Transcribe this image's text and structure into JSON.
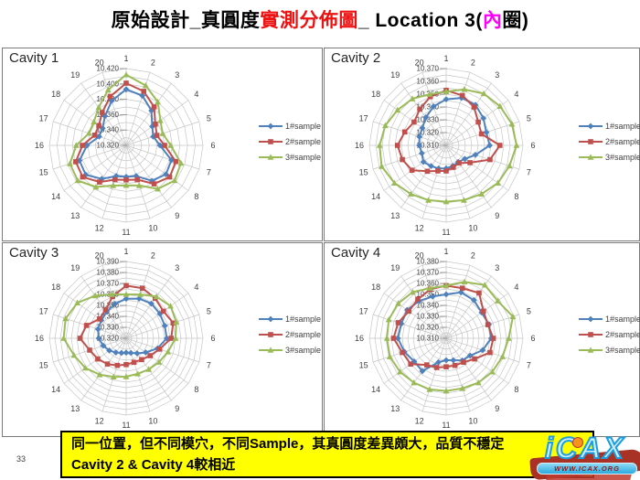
{
  "slide": {
    "title_segments": [
      {
        "text": "原始設計_真圓度",
        "color": "#000000"
      },
      {
        "text": "實測分佈圖",
        "color": "#ee1111"
      },
      {
        "text": "_ Location 3(",
        "color": "#000000"
      },
      {
        "text": "內",
        "color": "#ff00ff"
      },
      {
        "text": "圈)",
        "color": "#000000"
      }
    ],
    "page_number": "33",
    "note": {
      "line1": "同一位置，但不同模穴，不同Sample，其真圓度差異頗大，品質不穩定",
      "line2": "Cavity 2 & Cavity 4較相近"
    },
    "logo": {
      "text": "iCAX",
      "url": "WWW.ICAX.ORG"
    }
  },
  "colors": {
    "series1": "#4F81BD",
    "series2": "#C0504D",
    "series3": "#9BBB59",
    "grid": "#c6c6c6",
    "banner_bg": "#ffff00"
  },
  "chart_data": [
    {
      "type": "radar",
      "title": "Cavity 1",
      "categories": [
        "1",
        "2",
        "3",
        "4",
        "5",
        "6",
        "7",
        "8",
        "9",
        "10",
        "11",
        "12",
        "13",
        "14",
        "15",
        "16",
        "17",
        "18",
        "19",
        "20"
      ],
      "axis": {
        "min": 10.32,
        "max": 10.42,
        "minor_step": 0.01,
        "tick_labels": [
          "10.420",
          "10.400",
          "10.380",
          "10.360",
          "10.340",
          "10.320"
        ]
      },
      "legend_position": "right",
      "series": [
        {
          "name": "1#sample",
          "marker": "diamond",
          "color": "#4F81BD",
          "values": [
            10.393,
            10.388,
            10.376,
            10.362,
            10.357,
            10.364,
            10.382,
            10.384,
            10.377,
            10.362,
            10.361,
            10.362,
            10.374,
            10.385,
            10.384,
            10.371,
            10.357,
            10.358,
            10.367,
            10.381
          ]
        },
        {
          "name": "2#sample",
          "marker": "square",
          "color": "#C0504D",
          "values": [
            10.401,
            10.394,
            10.382,
            10.367,
            10.362,
            10.37,
            10.388,
            10.39,
            10.382,
            10.367,
            10.365,
            10.367,
            10.379,
            10.39,
            10.389,
            10.377,
            10.363,
            10.364,
            10.373,
            10.387
          ]
        },
        {
          "name": "3#sample",
          "marker": "triangle",
          "color": "#9BBB59",
          "values": [
            10.412,
            10.402,
            10.39,
            10.375,
            10.37,
            10.378,
            10.395,
            10.398,
            10.39,
            10.375,
            10.372,
            10.375,
            10.387,
            10.398,
            10.397,
            10.385,
            10.371,
            10.372,
            10.381,
            10.396
          ]
        }
      ]
    },
    {
      "type": "radar",
      "title": "Cavity 2",
      "categories": [
        "1",
        "2",
        "3",
        "4",
        "5",
        "6",
        "7",
        "8",
        "9",
        "10",
        "11",
        "12",
        "13",
        "14",
        "15",
        "16",
        "17",
        "18",
        "19",
        "20"
      ],
      "axis": {
        "min": 10.31,
        "max": 10.37,
        "minor_step": 0.005,
        "tick_labels": [
          "10.370",
          "10.360",
          "10.350",
          "10.340",
          "10.330",
          "10.320",
          "10.310"
        ]
      },
      "legend_position": "right",
      "series": [
        {
          "name": "1#sample",
          "marker": "diamond",
          "color": "#4F81BD",
          "values": [
            10.346,
            10.349,
            10.349,
            10.346,
            10.343,
            10.344,
            10.334,
            10.328,
            10.326,
            10.327,
            10.328,
            10.329,
            10.33,
            10.332,
            10.33,
            10.331,
            10.332,
            10.333,
            10.337,
            10.342
          ]
        },
        {
          "name": "2#sample",
          "marker": "square",
          "color": "#C0504D",
          "values": [
            10.353,
            10.351,
            10.347,
            10.341,
            10.339,
            10.352,
            10.346,
            10.333,
            10.327,
            10.328,
            10.33,
            10.331,
            10.335,
            10.343,
            10.346,
            10.348,
            10.344,
            10.341,
            10.345,
            10.35
          ]
        },
        {
          "name": "3#sample",
          "marker": "triangle",
          "color": "#9BBB59",
          "values": [
            10.352,
            10.356,
            10.36,
            10.362,
            10.364,
            10.365,
            10.362,
            10.36,
            10.357,
            10.355,
            10.354,
            10.355,
            10.357,
            10.36,
            10.363,
            10.362,
            10.36,
            10.357,
            10.355,
            10.352
          ]
        }
      ]
    },
    {
      "type": "radar",
      "title": "Cavity 3",
      "categories": [
        "1",
        "2",
        "3",
        "4",
        "5",
        "6",
        "7",
        "8",
        "9",
        "10",
        "11",
        "12",
        "13",
        "14",
        "15",
        "16",
        "17",
        "18",
        "19",
        "20"
      ],
      "axis": {
        "min": 10.32,
        "max": 10.39,
        "minor_step": 0.005,
        "tick_labels": [
          "10.390",
          "10.380",
          "10.370",
          "10.360",
          "10.350",
          "10.340",
          "10.330",
          "10.320"
        ]
      },
      "legend_position": "right",
      "series": [
        {
          "name": "1#sample",
          "marker": "diamond",
          "color": "#4F81BD",
          "values": [
            10.356,
            10.358,
            10.359,
            10.358,
            10.357,
            10.357,
            10.35,
            10.342,
            10.337,
            10.334,
            10.333,
            10.334,
            10.336,
            10.339,
            10.342,
            10.345,
            10.347,
            10.348,
            10.35,
            10.353
          ]
        },
        {
          "name": "2#sample",
          "marker": "square",
          "color": "#C0504D",
          "values": [
            10.368,
            10.368,
            10.365,
            10.362,
            10.365,
            10.361,
            10.352,
            10.347,
            10.344,
            10.343,
            10.344,
            10.346,
            10.349,
            10.352,
            10.355,
            10.362,
            10.358,
            10.35,
            10.352,
            10.36
          ]
        },
        {
          "name": "3#sample",
          "marker": "triangle",
          "color": "#9BBB59",
          "values": [
            10.36,
            10.362,
            10.367,
            10.37,
            10.368,
            10.365,
            10.36,
            10.357,
            10.355,
            10.354,
            10.355,
            10.357,
            10.361,
            10.366,
            10.37,
            10.377,
            10.378,
            10.375,
            10.368,
            10.362
          ]
        }
      ]
    },
    {
      "type": "radar",
      "title": "Cavity 4",
      "categories": [
        "1",
        "2",
        "3",
        "4",
        "5",
        "6",
        "7",
        "8",
        "9",
        "10",
        "11",
        "12",
        "13",
        "14",
        "15",
        "16",
        "17",
        "18",
        "19",
        "20"
      ],
      "axis": {
        "min": 10.31,
        "max": 10.38,
        "minor_step": 0.005,
        "tick_labels": [
          "10.380",
          "10.370",
          "10.360",
          "10.350",
          "10.340",
          "10.330",
          "10.320",
          "10.310"
        ]
      },
      "legend_position": "right",
      "series": [
        {
          "name": "1#sample",
          "marker": "diamond",
          "color": "#4F81BD",
          "values": [
            10.35,
            10.354,
            10.353,
            10.35,
            10.351,
            10.351,
            10.345,
            10.337,
            10.335,
            10.331,
            10.33,
            10.333,
            10.347,
            10.346,
            10.35,
            10.354,
            10.353,
            10.354,
            10.352,
            10.35
          ]
        },
        {
          "name": "2#sample",
          "marker": "square",
          "color": "#C0504D",
          "values": [
            10.358,
            10.358,
            10.361,
            10.352,
            10.35,
            10.353,
            10.352,
            10.342,
            10.337,
            10.336,
            10.336,
            10.338,
            10.34,
            10.35,
            10.352,
            10.358,
            10.356,
            10.352,
            10.354,
            10.357
          ]
        },
        {
          "name": "3#sample",
          "marker": "triangle",
          "color": "#9BBB59",
          "values": [
            10.358,
            10.364,
            10.37,
            10.368,
            10.374,
            10.367,
            10.364,
            10.362,
            10.36,
            10.358,
            10.358,
            10.359,
            10.36,
            10.362,
            10.364,
            10.364,
            10.365,
            10.364,
            10.362,
            10.358
          ]
        }
      ]
    }
  ]
}
